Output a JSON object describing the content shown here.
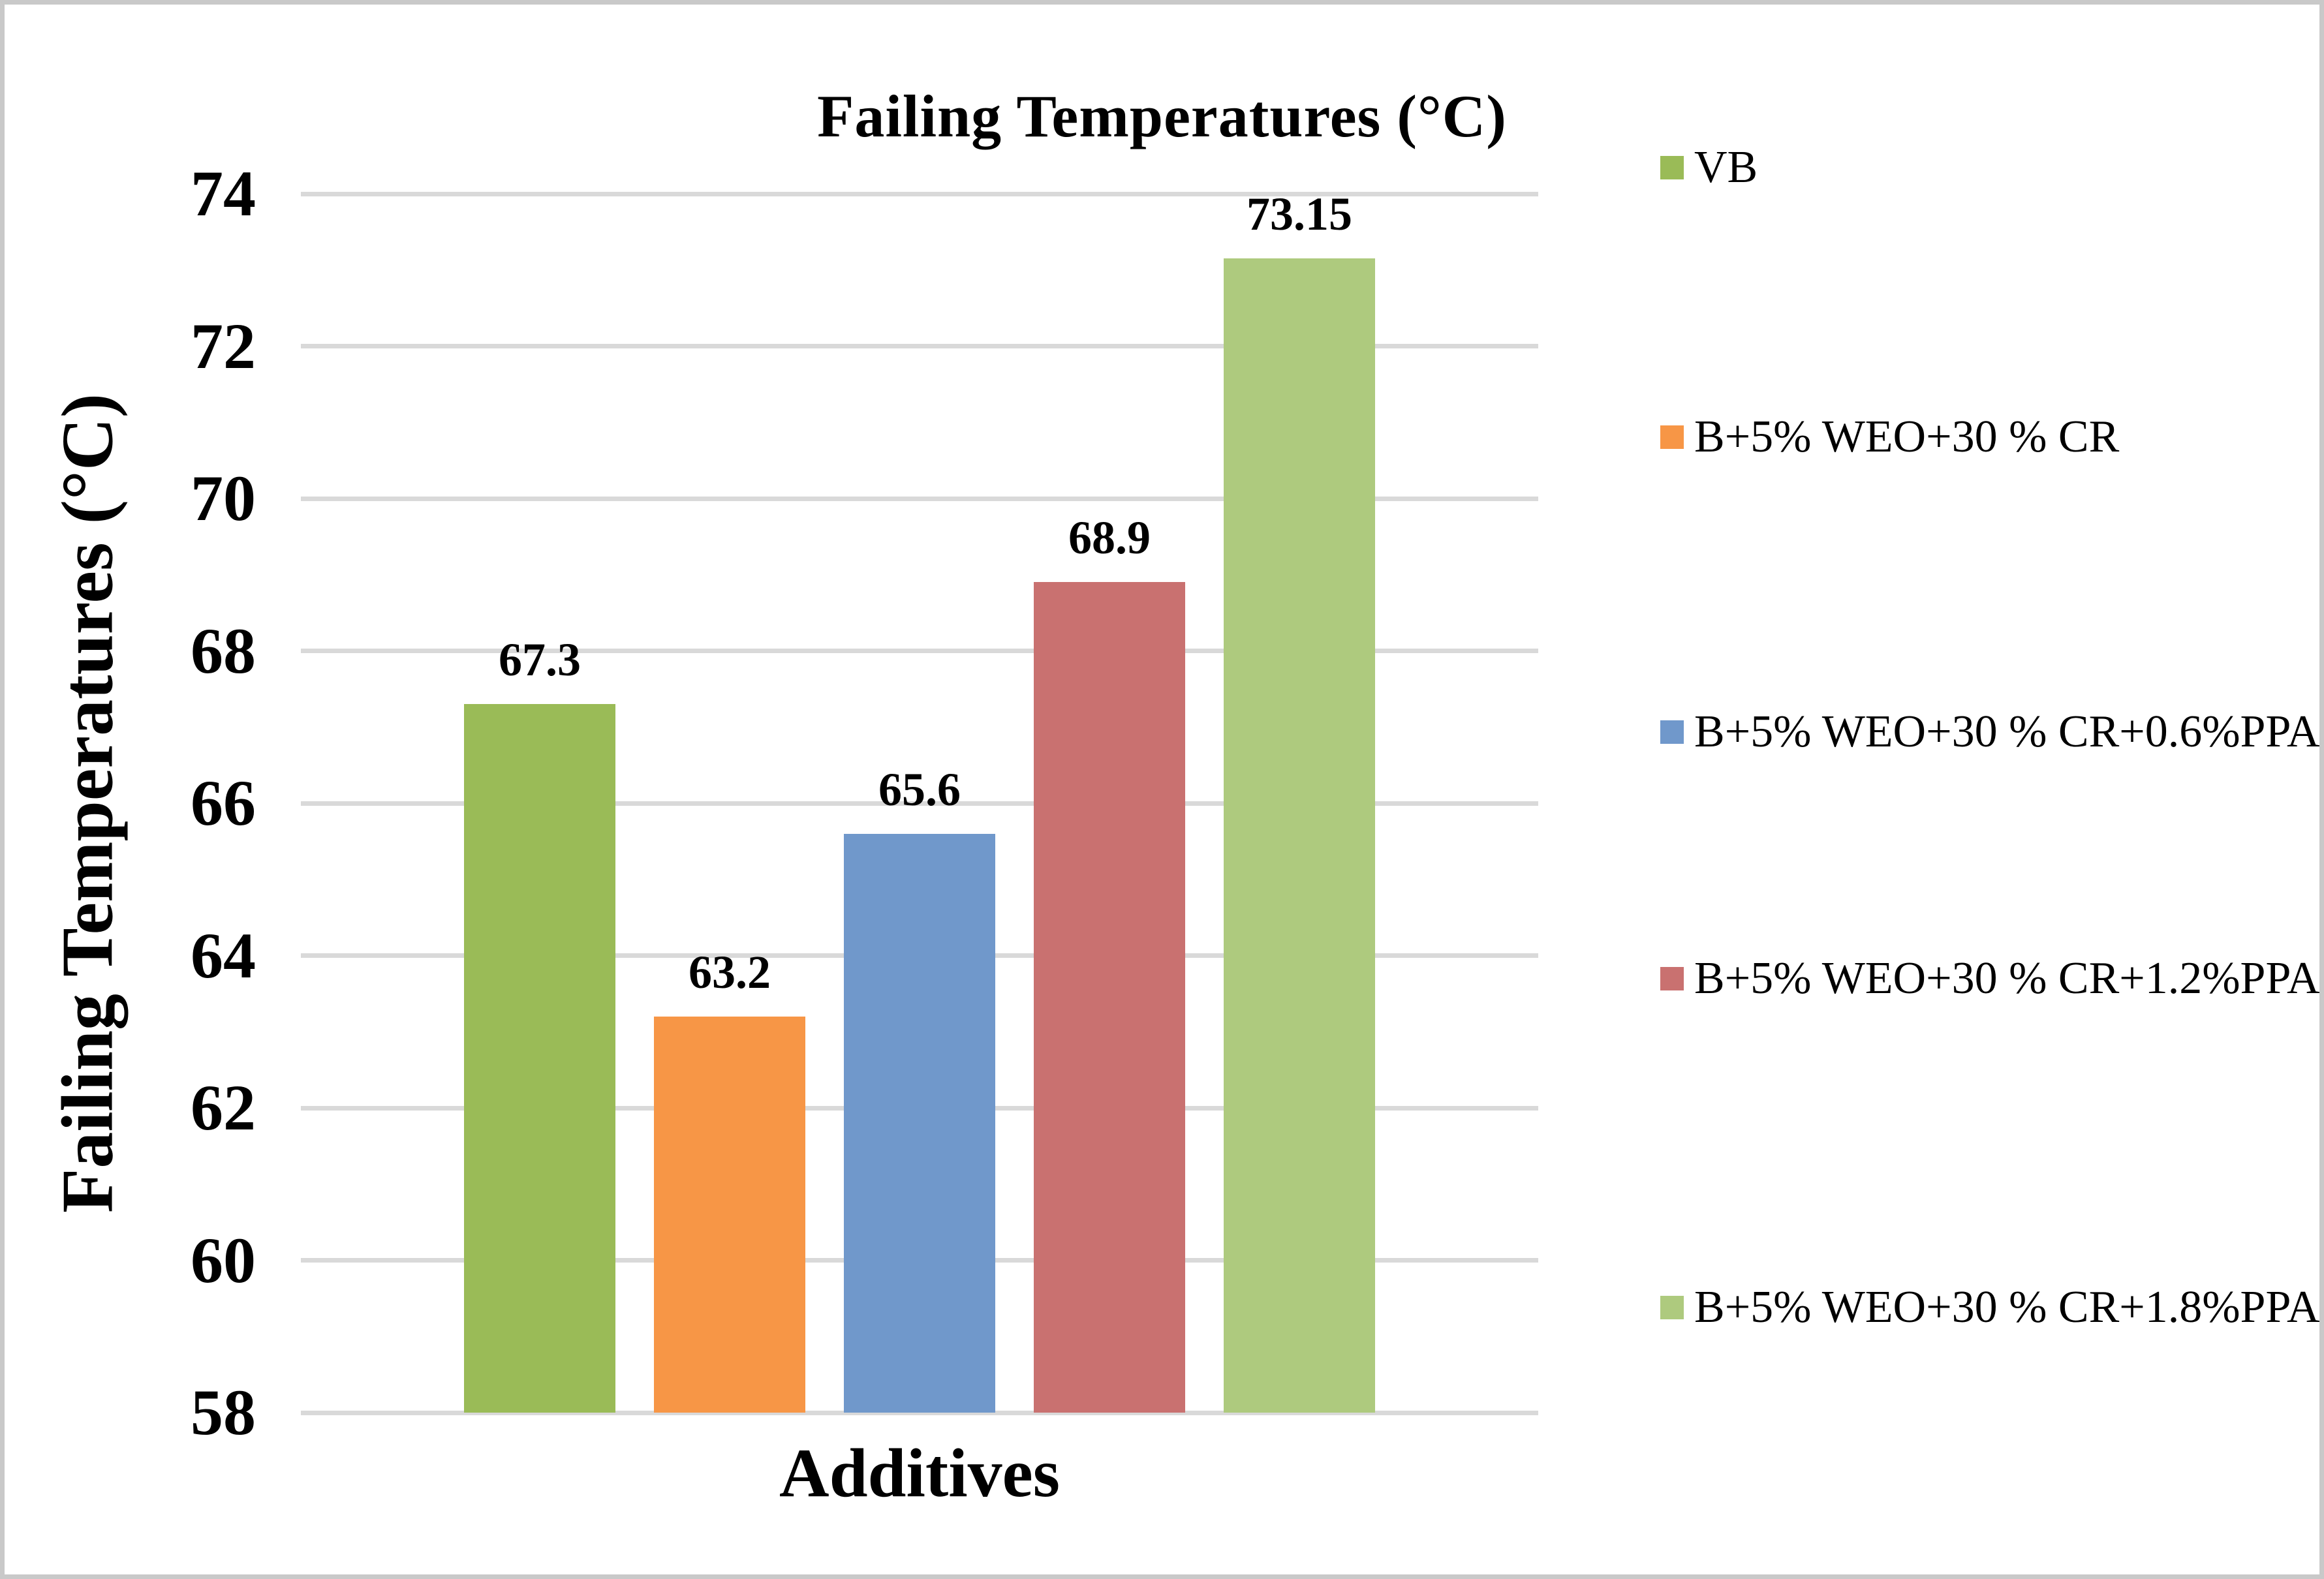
{
  "chart_data": {
    "type": "bar",
    "title": "Failing Temperatures (°C)",
    "xlabel": "Additives",
    "ylabel": "Failing Temperatures (°C)",
    "ylim": [
      58,
      74
    ],
    "ytick_step": 2,
    "yticks": [
      58,
      60,
      62,
      64,
      66,
      68,
      70,
      72,
      74
    ],
    "grid": true,
    "legend_position": "right-vertical",
    "categories": [
      "Additives"
    ],
    "series": [
      {
        "name": "VB",
        "value": 67.3,
        "label": "67.3",
        "color": "#9ABB57"
      },
      {
        "name": "B+5% WEO+30 % CR",
        "value": 63.2,
        "label": "63.2",
        "color": "#F79646"
      },
      {
        "name": "B+5% WEO+30 % CR+0.6%PPA",
        "value": 65.6,
        "label": "65.6",
        "color": "#7098CB"
      },
      {
        "name": "B+5% WEO+30 % CR+1.2%PPA",
        "value": 68.9,
        "label": "68.9",
        "color": "#C97170"
      },
      {
        "name": "B+5% WEO+30 % CR+1.8%PPA",
        "value": 73.15,
        "label": "73.15",
        "color": "#AECA7E"
      }
    ]
  },
  "colors": {
    "gridline": "#D9D9D9",
    "frame_border": "#C9C9C9",
    "background": "#FFFFFF",
    "text": "#000000"
  }
}
